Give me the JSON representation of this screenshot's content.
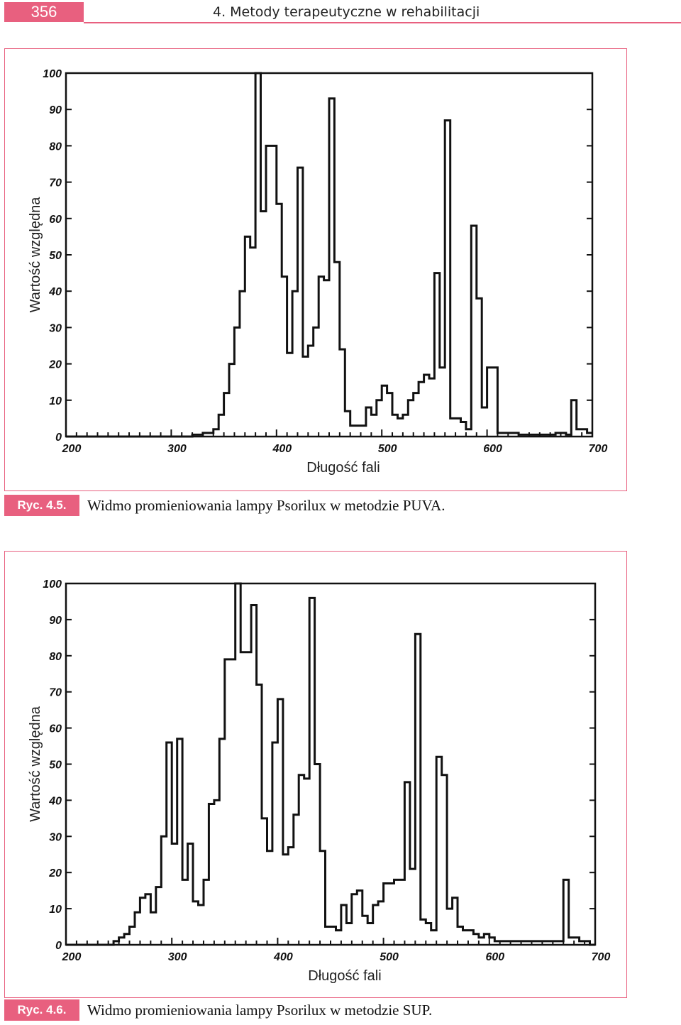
{
  "header": {
    "page_number": "356",
    "chapter_title": "4. Metody terapeutyczne w rehabilitacji"
  },
  "colors": {
    "accent": "#e8607f",
    "ink": "#111111"
  },
  "figures": [
    {
      "label": "Ryc. 4.5.",
      "caption": "Widmo promieniowania lampy Psorilux w metodzie PUVA."
    },
    {
      "label": "Ryc. 4.6.",
      "caption": "Widmo promieniowania lampy Psorilux w metodzie SUP."
    }
  ],
  "chart_data": [
    {
      "type": "line",
      "style": "step",
      "title": "",
      "xlabel": "Długość fali",
      "ylabel": "Wartość względna",
      "xlim": [
        200,
        700
      ],
      "ylim": [
        0,
        100
      ],
      "x_ticks": [
        "200",
        "300",
        "400",
        "500",
        "600",
        "700"
      ],
      "y_ticks": [
        "0",
        "10",
        "20",
        "30",
        "40",
        "50",
        "60",
        "70",
        "80",
        "90",
        "100"
      ],
      "x": [
        200,
        310,
        320,
        330,
        340,
        345,
        350,
        355,
        360,
        365,
        370,
        375,
        380,
        385,
        390,
        395,
        400,
        405,
        410,
        415,
        420,
        425,
        430,
        435,
        440,
        445,
        450,
        455,
        460,
        465,
        470,
        475,
        480,
        485,
        490,
        495,
        500,
        505,
        510,
        515,
        520,
        525,
        530,
        535,
        540,
        545,
        550,
        555,
        560,
        565,
        570,
        575,
        580,
        585,
        590,
        595,
        600,
        610,
        620,
        630,
        640,
        650,
        660,
        665,
        670,
        675,
        680,
        685,
        690,
        695
      ],
      "values": [
        0,
        0,
        0.5,
        1,
        2,
        6,
        12,
        20,
        30,
        40,
        55,
        52,
        100,
        62,
        80,
        80,
        64,
        44,
        23,
        40,
        74,
        22,
        25,
        30,
        44,
        43,
        93,
        48,
        24,
        7,
        3,
        3,
        3,
        8,
        6,
        10,
        14,
        12,
        6,
        5,
        6,
        10,
        12,
        15,
        17,
        16,
        45,
        19,
        87,
        5,
        5,
        4,
        2,
        58,
        38,
        8,
        19,
        1,
        1,
        0.5,
        0.5,
        0.5,
        0.5,
        1,
        1,
        0.5,
        10,
        2,
        2,
        1
      ]
    },
    {
      "type": "line",
      "style": "step",
      "title": "",
      "xlabel": "Długość fali",
      "ylabel": "Wartość względna",
      "xlim": [
        200,
        700
      ],
      "ylim": [
        0,
        100
      ],
      "x_ticks": [
        "200",
        "300",
        "400",
        "500",
        "600",
        "700"
      ],
      "y_ticks": [
        "0",
        "10",
        "20",
        "30",
        "40",
        "50",
        "60",
        "70",
        "80",
        "90",
        "100"
      ],
      "x": [
        200,
        240,
        245,
        250,
        255,
        260,
        265,
        270,
        275,
        280,
        285,
        290,
        295,
        300,
        305,
        310,
        315,
        320,
        325,
        330,
        335,
        340,
        345,
        350,
        355,
        360,
        365,
        370,
        375,
        380,
        385,
        390,
        395,
        400,
        405,
        410,
        415,
        420,
        425,
        430,
        435,
        440,
        445,
        450,
        455,
        460,
        465,
        470,
        475,
        480,
        485,
        490,
        495,
        500,
        505,
        510,
        515,
        520,
        525,
        530,
        535,
        540,
        545,
        550,
        555,
        560,
        565,
        570,
        575,
        580,
        585,
        590,
        595,
        600,
        605,
        615,
        625,
        635,
        645,
        655,
        660,
        665,
        670,
        675,
        680,
        685,
        690,
        695
      ],
      "values": [
        0,
        0,
        1,
        2,
        3,
        5,
        9,
        13,
        14,
        9,
        16,
        30,
        56,
        28,
        57,
        18,
        28,
        12,
        11,
        18,
        39,
        40,
        57,
        79,
        79,
        100,
        81,
        81,
        94,
        72,
        35,
        26,
        56,
        68,
        25,
        27,
        36,
        47,
        46,
        96,
        50,
        26,
        5,
        5,
        4,
        11,
        6,
        14,
        15,
        8,
        6,
        11,
        12,
        17,
        17,
        18,
        18,
        45,
        21,
        86,
        7,
        6,
        4,
        52,
        47,
        10,
        13,
        5,
        4,
        4,
        3,
        2,
        3,
        2,
        1,
        1,
        1,
        1,
        1,
        1,
        1,
        1,
        18,
        2,
        2,
        1,
        1,
        0
      ]
    }
  ]
}
